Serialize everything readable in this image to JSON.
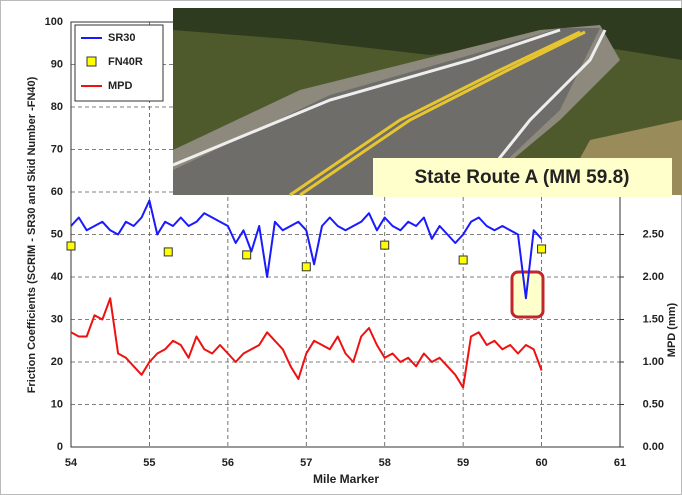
{
  "chart_data": {
    "type": "line",
    "annotation": "State Route A (MM 59.8)",
    "x_label": "Mile Marker",
    "y_label": "Friction Coefficients (SCRIM - SR30 and Skid Number -FN40)",
    "y2_label": "MPD (mm)",
    "xlim": [
      54,
      61
    ],
    "xticks": [
      54,
      55,
      56,
      57,
      58,
      59,
      60,
      61
    ],
    "ylim": [
      0,
      100
    ],
    "yticks": [
      0,
      10,
      20,
      30,
      40,
      50,
      60,
      70,
      80,
      90,
      100
    ],
    "y2lim": [
      0,
      5
    ],
    "y2ticks": [
      {
        "value": 0,
        "label": "0.00"
      },
      {
        "value": 0.5,
        "label": "0.50"
      },
      {
        "value": 1,
        "label": "1.00"
      },
      {
        "value": 1.5,
        "label": "1.50"
      },
      {
        "value": 2,
        "label": "2.00"
      },
      {
        "value": 2.5,
        "label": "2.50"
      }
    ],
    "grid": true,
    "legend": "upper left",
    "x": [
      54.0,
      54.1,
      54.2,
      54.3,
      54.4,
      54.5,
      54.6,
      54.7,
      54.8,
      54.9,
      55.0,
      55.1,
      55.2,
      55.3,
      55.4,
      55.5,
      55.6,
      55.7,
      55.8,
      55.9,
      56.0,
      56.1,
      56.2,
      56.3,
      56.4,
      56.5,
      56.6,
      56.7,
      56.8,
      56.9,
      57.0,
      57.1,
      57.2,
      57.3,
      57.4,
      57.5,
      57.6,
      57.7,
      57.8,
      57.9,
      58.0,
      58.1,
      58.2,
      58.3,
      58.4,
      58.5,
      58.6,
      58.7,
      58.8,
      58.9,
      59.0,
      59.1,
      59.2,
      59.3,
      59.4,
      59.5,
      59.6,
      59.7,
      59.8,
      59.9,
      60.0
    ],
    "series": [
      {
        "name": "SR30",
        "color": "#1a1aff",
        "mode": "line",
        "values": [
          52,
          54,
          51,
          52,
          53,
          51,
          50,
          53,
          52,
          54,
          58,
          50,
          53,
          52,
          54,
          52,
          53,
          55,
          54,
          53,
          52,
          48,
          51,
          46,
          52,
          40,
          53,
          51,
          52,
          53,
          51,
          43,
          52,
          54,
          52,
          51,
          52,
          53,
          55,
          51,
          54,
          52,
          51,
          53,
          52,
          54,
          49,
          52,
          50,
          48,
          50,
          53,
          54,
          52,
          51,
          52,
          51,
          50,
          35,
          51,
          49
        ]
      },
      {
        "name": "FN40R",
        "color": "#ffff00",
        "mode": "marker",
        "x": [
          54.0,
          55.24,
          56.24,
          57.0,
          58.0,
          59.0,
          60.0
        ],
        "values": [
          47.3,
          45.9,
          45.2,
          42.4,
          47.5,
          44.0,
          46.6
        ]
      },
      {
        "name": "MPD",
        "color": "#ee1111",
        "mode": "line",
        "axis": "y2",
        "values": [
          1.35,
          1.3,
          1.3,
          1.55,
          1.5,
          1.75,
          1.1,
          1.05,
          0.95,
          0.85,
          1.0,
          1.1,
          1.15,
          1.25,
          1.2,
          1.05,
          1.3,
          1.15,
          1.1,
          1.2,
          1.1,
          1.0,
          1.1,
          1.15,
          1.2,
          1.35,
          1.25,
          1.15,
          0.95,
          0.8,
          1.1,
          1.25,
          1.2,
          1.15,
          1.3,
          1.1,
          1.0,
          1.3,
          1.4,
          1.2,
          1.05,
          1.1,
          1.0,
          1.05,
          0.95,
          1.1,
          1.0,
          1.05,
          0.95,
          0.85,
          0.7,
          1.3,
          1.35,
          1.2,
          1.25,
          1.15,
          1.2,
          1.1,
          1.2,
          1.15,
          0.9
        ]
      }
    ]
  }
}
